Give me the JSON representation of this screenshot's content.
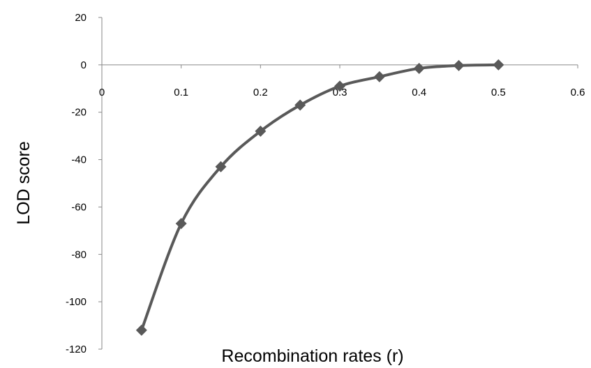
{
  "chart_data": {
    "type": "line",
    "title": "",
    "xlabel": "Recombination rates (r)",
    "ylabel": "LOD score",
    "xlim": [
      0,
      0.6
    ],
    "ylim": [
      -120,
      20
    ],
    "x_ticks": [
      0,
      0.1,
      0.2,
      0.3,
      0.4,
      0.5,
      0.6
    ],
    "x_tick_labels": [
      "0",
      "0.1",
      "0.2",
      "0.3",
      "0.4",
      "0.5",
      "0.6"
    ],
    "y_ticks": [
      20,
      0,
      -20,
      -40,
      -60,
      -80,
      -100,
      -120
    ],
    "y_tick_labels": [
      "20",
      "0",
      "-20",
      "-40",
      "-60",
      "-80",
      "-100",
      "-120"
    ],
    "grid": false,
    "legend": "none",
    "marker": "diamond",
    "line_color": "#595959",
    "series": [
      {
        "x": [
          0.05,
          0.1,
          0.15,
          0.2,
          0.25,
          0.3,
          0.35,
          0.4,
          0.45,
          0.5
        ],
        "y": [
          -112,
          -67,
          -43,
          -28,
          -17,
          -9,
          -5,
          -1.5,
          -0.3,
          0
        ]
      }
    ]
  }
}
